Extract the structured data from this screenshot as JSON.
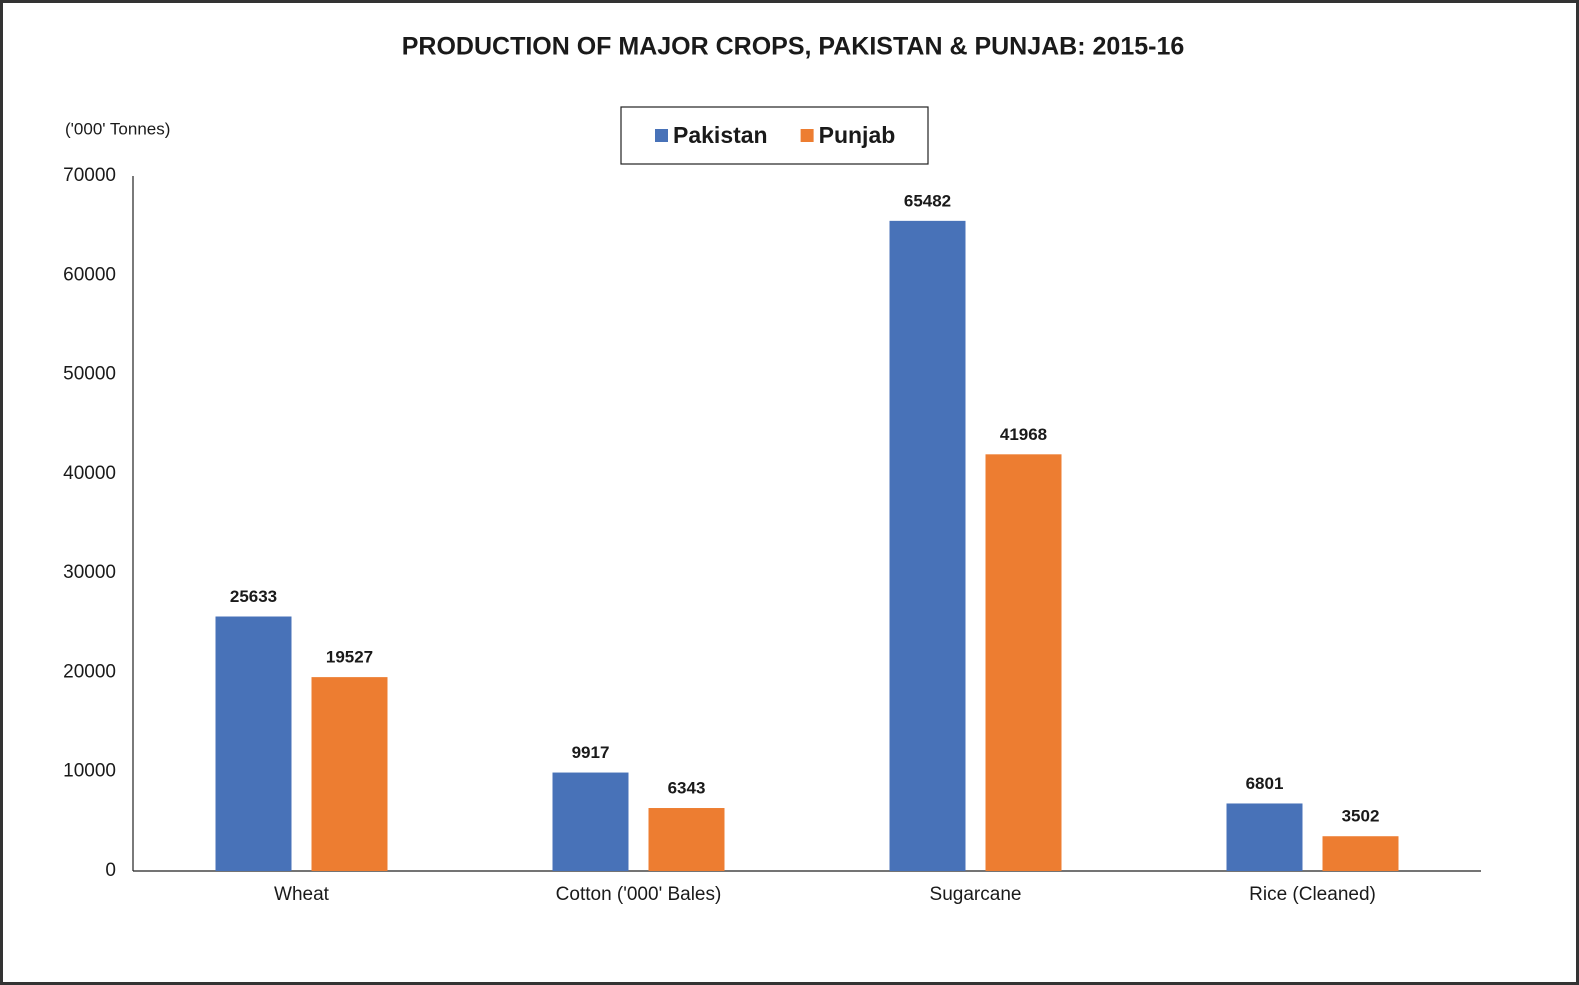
{
  "chart_data": {
    "type": "bar",
    "title": "PRODUCTION OF MAJOR CROPS, PAKISTAN & PUNJAB:  2015-16",
    "y_axis_label": "('000' Tonnes)",
    "categories": [
      "Wheat",
      "Cotton ('000' Bales)",
      "Sugarcane",
      "Rice (Cleaned)"
    ],
    "series": [
      {
        "name": "Pakistan",
        "color": "#4872b8",
        "values": [
          25633,
          9917,
          65482,
          6801
        ]
      },
      {
        "name": "Punjab",
        "color": "#ed7d31",
        "values": [
          19527,
          6343,
          41968,
          3502
        ]
      }
    ],
    "ylim": [
      0,
      70000
    ],
    "yticks": [
      0,
      10000,
      20000,
      30000,
      40000,
      50000,
      60000,
      70000
    ],
    "grid": false,
    "legend": "top"
  }
}
